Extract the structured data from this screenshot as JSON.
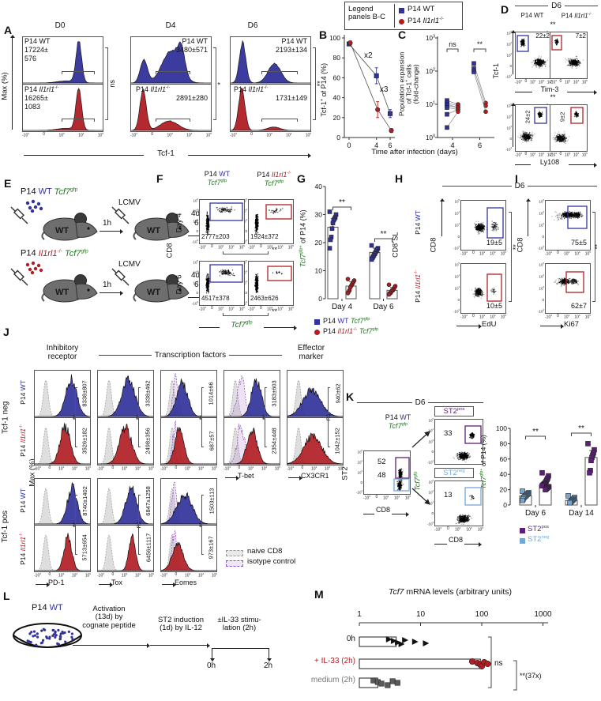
{
  "colors": {
    "wt_blue": "#32329b",
    "ko_red": "#b01e24",
    "gfp_green": "#1f7a1f",
    "st2pos_purple": "#5c2177",
    "st2neg_blue": "#6fa8dc",
    "naive_gray": "#dcdcdc",
    "isotype_purple": "#8b4bb8"
  },
  "flow_ticks": {
    "x": [
      "-10^3",
      "0",
      "10^3",
      "10^4",
      "10^5"
    ],
    "y": [
      "10^5",
      "10^4",
      "10^3",
      "0",
      "-10^3"
    ]
  },
  "panelA": {
    "label": "A",
    "ylabel": "Max (%)",
    "xlabel": "Tcf-1",
    "wt_name": "P14 WT",
    "ko_name_html": "P14 <i>Il1rl1</i><sup>-/-</sup>",
    "plots": [
      {
        "day": "D0",
        "wt_value": "17224±",
        "wt_value2": "576",
        "ko_value": "16265±",
        "ko_value2": "1083",
        "sig": "ns"
      },
      {
        "day": "D4",
        "wt_value": "3480±571",
        "ko_value": "2891±280",
        "sig": "*"
      },
      {
        "day": "D6",
        "wt_value": "2193±134",
        "ko_value": "1731±149",
        "sig": "**"
      }
    ]
  },
  "legendBC": {
    "title_html": "Legend<br>panels B-C",
    "wt": "P14 WT",
    "ko_html": "P14 <i>Il1rl1</i><sup>-/-</sup>"
  },
  "panelB": {
    "label": "B",
    "ylabel_html": "Tcf-1<sup>+</sup> of P14 (%)",
    "xlabel": "Time after infection (days)"
  },
  "panelC": {
    "label": "C",
    "ylabel_html": "Population expansion<br>of Tcf-1<sup>+</sup> cells<br>(fold-change)"
  },
  "panelD": {
    "label": "D",
    "day": "D6",
    "col_wt": "P14 WT",
    "col_ko_html": "P14 <i>Il1rl1</i><sup>-/-</sup>",
    "ylabel": "Tcf-1",
    "rows": [
      {
        "xlabel": "Tim-3",
        "sig": "**",
        "wt": "22±2",
        "ko": "7±2"
      },
      {
        "xlabel": "Ly108",
        "sig": "**",
        "wt": "24±2",
        "ko": "9±2"
      }
    ]
  },
  "panelE": {
    "label": "E",
    "row1_html": "P14 <span class=\"c-wt\">WT</span> <span class=\"c-gfp\"><i>Tcf7</i><sup>gfp</sup></span>",
    "row2_html": "P14 <span class=\"c-ko\"><i>Il1rl1</i><sup>-/-</sup></span> <span class=\"c-gfp\"><i>Tcf7</i><sup>gfp</sup></span>",
    "t_inj": "1h",
    "virus": "LCMV",
    "mouse": "WT",
    "t_read1": "4d /",
    "t_read2": "6d"
  },
  "panelF": {
    "label": "F",
    "col1_html": "P14 <span class=\"c-wt\">WT</span><br><span class=\"c-gfp\"><i>Tcf7</i><sup>gfp</sup></span>",
    "col2_html": "P14 <span class=\"c-ko\"><i>Il1rl1</i><sup>-/-</sup></span><br><span class=\"c-gfp\"><i>Tcf7</i><sup>gfp</sup></span>",
    "ylabel": "CD8",
    "xlabel_html": "<span class=\"c-gfp\"><i>Tcf7</i><sup>gfp</sup></span>",
    "rows": [
      {
        "row": "Day 4",
        "wt": "2777±203",
        "ko": "1924±372",
        "sig": "**"
      },
      {
        "row": "Day 6",
        "wt": "4517±378",
        "ko": "2463±626",
        "sig": "**"
      }
    ]
  },
  "panelG": {
    "label": "G",
    "ylabel_html": "<i class=\"c-gfp\">Tcf7</i><sup class=\"c-gfp\">gfp+</sup> of P14 (%)",
    "legend_wt_html": "P14 <span class=\"c-wt\">WT</span> <span class=\"c-gfp\"><i>Tcf7</i><sup>gfp</sup></span>",
    "legend_ko_html": "P14 <span class=\"c-ko\"><i>Il1rl1</i><sup>-/-</sup></span> <span class=\"c-gfp\"><i>Tcf7</i><sup>gfp</sup></span>"
  },
  "panelH": {
    "label": "H",
    "day": "D6",
    "group_html": "CD8<sup>+</sup>SL",
    "row_wt_html": "P14 <span class=\"c-wt\">WT</span>",
    "row_ko_html": "P14 <span class=\"c-ko\"><i>Il1rl1</i><sup>-/-</sup></span>",
    "ylabel": "CD8",
    "xlabel": "EdU",
    "wt_val": "19±5",
    "ko_val": "10±5",
    "sig": "**"
  },
  "panelI": {
    "label": "I",
    "ylabel": "CD8",
    "xlabel": "Ki67",
    "wt_val": "75±5",
    "ko_val": "62±7",
    "sig": "**"
  },
  "panelJ": {
    "label": "J",
    "header1_html": "Inhibitory<br>receptor",
    "header2": "Transcription factors",
    "header3_html": "Effector<br>marker",
    "group1": "Tcf-1 neg",
    "group2": "Tcf-1 pos",
    "row_wt_html": "P14 <span class=\"c-wt\">WT</span>",
    "row_ko_html": "P14 <span class=\"c-ko\"><i>Il1rl1</i><sup>-/-</sup></span>",
    "ylabel": "Max (%)",
    "legend_naive": "naive CD8",
    "legend_iso": "isotype control",
    "top_cols": [
      {
        "x": "",
        "wt": "8338±807",
        "ko": "3526±182",
        "sig": "**"
      },
      {
        "x": "",
        "wt": "3338±462",
        "ko": "2498±356",
        "sig": "**"
      },
      {
        "x": "",
        "wt": "1014±66",
        "ko": "687±57",
        "sig": "**"
      },
      {
        "x": "T-bet",
        "wt": "3183±603",
        "ko": "2354±448",
        "sig": "**"
      },
      {
        "x": "CX3CR1",
        "wt": "940±62",
        "ko": "1042±152",
        "sig": "ns"
      }
    ],
    "bottom_cols": [
      {
        "x": "PD-1",
        "wt": "8740±1402",
        "ko": "5713±654",
        "sig": "**"
      },
      {
        "x": "Tox",
        "wt": "6847±1258",
        "ko": "6456±1117",
        "sig": "ns"
      },
      {
        "x": "Eomes",
        "wt": "1503±113",
        "ko": "973±167",
        "sig": "**"
      }
    ]
  },
  "panelK": {
    "label": "K",
    "day": "D6",
    "left_title_html": "P14 <span class=\"c-wt\">WT</span><br><span class=\"c-gfp\"><i>Tcf7</i><sup>gfp</sup></span>",
    "left_ylabel": "ST2",
    "left_xlabel": "CD8",
    "gate_pos": "52",
    "gate_neg": "48",
    "pos_label_html": "ST2<sup>pos</sup>",
    "neg_label_html": "ST2<sup>neg</sup>",
    "pos_value": "33",
    "neg_value": "13",
    "mid_ylabel_html": "<i>Tcf7</i><sup>gfp</sup>",
    "mid_xlabel": "CD8",
    "bar_ylabel_html": "<i class=\"c-gfp\">Tcf7</i><sup class=\"c-gfp\">gfp+</sup> of P14 (%)",
    "legend_pos_html": "ST2<sup>pos</sup>",
    "legend_neg_html": "ST2<sup>neg</sup>"
  },
  "panelL": {
    "label": "L",
    "cells_html": "P14 <span class=\"c-wt\">WT</span>",
    "step1_html": "Activation<br>(13d) by<br>cognate peptide",
    "step2_html": "ST2 induction<br>(1d) by IL-12",
    "step3_html": "±IL-33 stimu-<br>lation (2h)",
    "t0": "0h",
    "t1": "2h"
  },
  "panelM": {
    "label": "M",
    "title_html": "<i>Tcf7</i> mRNA levels (arbitrary units)"
  },
  "chart_data": [
    {
      "id": "B",
      "type": "line",
      "title": "",
      "xlabel": "Time after infection (days)",
      "ylabel": "Tcf-1+ of P14 (%)",
      "x": [
        0,
        4,
        6
      ],
      "ylim": [
        0,
        100
      ],
      "yticks": [
        0,
        20,
        40,
        60,
        80,
        100
      ],
      "series": [
        {
          "name": "P14 WT",
          "marker": "square",
          "color": "#32329b",
          "values": [
            94,
            62,
            24
          ],
          "errors": [
            2,
            8,
            4
          ]
        },
        {
          "name": "P14 Il1rl1-/-",
          "marker": "circle",
          "color": "#b01e24",
          "values": [
            95,
            28,
            7
          ],
          "errors": [
            2,
            8,
            2
          ]
        }
      ],
      "annotations": [
        {
          "text": "x2",
          "x": 2.8,
          "y": 80
        },
        {
          "text": "x3",
          "x": 5.1,
          "y": 46
        }
      ]
    },
    {
      "id": "C",
      "type": "paired_scatter",
      "ylabel": "Population expansion of Tcf-1+ cells (fold-change)",
      "yscale": "log",
      "ylim": [
        1,
        1000
      ],
      "categories": [
        "4",
        "6"
      ],
      "pairs": {
        "4": [
          [
            13,
            10
          ],
          [
            11,
            9
          ],
          [
            10,
            8
          ],
          [
            9,
            8
          ],
          [
            8,
            7
          ],
          [
            5,
            7
          ],
          [
            2,
            6
          ]
        ],
        "6": [
          [
            170,
            11
          ],
          [
            120,
            9
          ],
          [
            95,
            6
          ]
        ]
      },
      "sig": [
        {
          "cat": "4",
          "label": "ns"
        },
        {
          "cat": "6",
          "label": "**"
        }
      ]
    },
    {
      "id": "G",
      "type": "bar_scatter",
      "ylabel": "Tcf7gfp+ of P14 (%)",
      "ylim": [
        0,
        40
      ],
      "yticks": [
        0,
        10,
        20,
        30,
        40
      ],
      "categories": [
        "Day 4",
        "Day 6"
      ],
      "series": [
        {
          "name": "P14 WT Tcf7gfp",
          "color": "#32329b",
          "marker": "square",
          "means": [
            25.5,
            16.5
          ],
          "errors": [
            3,
            1.5
          ],
          "points": [
            [
              31,
              30,
              29,
              28.5,
              28,
              27,
              25,
              22,
              21,
              18
            ],
            [
              19,
              18,
              17.5,
              17,
              16.5,
              16,
              15.5,
              15,
              14.5,
              14
            ]
          ]
        },
        {
          "name": "P14 Il1rl1-/- Tcf7gfp",
          "color": "#b01e24",
          "marker": "circle",
          "means": [
            4.5,
            3
          ],
          "errors": [
            1.5,
            1
          ],
          "points": [
            [
              7,
              6.5,
              6,
              5.5,
              5,
              4.5,
              4,
              3,
              2.5,
              2
            ],
            [
              5,
              4.5,
              4,
              3.5,
              3,
              3,
              2.5,
              2,
              2,
              1.5
            ]
          ]
        }
      ],
      "sig": [
        "**",
        "**"
      ]
    },
    {
      "id": "K",
      "type": "bar_scatter",
      "ylabel": "Tcf7gfp+ of P14 (%)",
      "ylim": [
        0,
        100
      ],
      "yticks": [
        0,
        20,
        40,
        60,
        80,
        100
      ],
      "categories": [
        "Day 6",
        "Day 14"
      ],
      "series": [
        {
          "name": "ST2neg",
          "color": "#6fa8dc",
          "marker": "square",
          "means": [
            12,
            6
          ],
          "errors": [
            3,
            2
          ],
          "points": [
            [
              18,
              16,
              15,
              14,
              13,
              12,
              11,
              10,
              8,
              6
            ],
            [
              12,
              10,
              8,
              7,
              6,
              5,
              4,
              3
            ]
          ]
        },
        {
          "name": "ST2pos",
          "color": "#5c2177",
          "marker": "square",
          "means": [
            26,
            62
          ],
          "errors": [
            5,
            9
          ],
          "points": [
            [
              42,
              38,
              35,
              33,
              31,
              29,
              28,
              27,
              26,
              25,
              24,
              23,
              22,
              21,
              20
            ],
            [
              80,
              72,
              68,
              65,
              62,
              58,
              45,
              42
            ]
          ]
        }
      ],
      "sig": [
        "**",
        "**"
      ]
    },
    {
      "id": "M",
      "type": "hbar_scatter",
      "title": "Tcf7 mRNA levels (arbitrary units)",
      "xscale": "log",
      "xlim": [
        1,
        1000
      ],
      "xticks": [
        1,
        10,
        100,
        1000
      ],
      "rows": [
        {
          "label": "0h",
          "color": "#111111",
          "marker": "triangle",
          "bar": 4,
          "points": [
            3,
            3.6,
            4.2,
            4.8,
            5.5,
            8,
            12
          ]
        },
        {
          "label": "+ IL-33 (2h)",
          "color": "#b01e24",
          "marker": "circle",
          "bar": 95,
          "points": [
            70,
            85,
            95,
            100,
            110,
            125
          ]
        },
        {
          "label": "medium (2h)",
          "color": "#5a5a5a",
          "marker": "square",
          "bar": 2,
          "points": [
            1.7,
            2,
            2.3,
            2.9,
            3.5,
            4.2
          ]
        }
      ],
      "sig": [
        {
          "label": "ns",
          "rows": [
            0,
            2
          ]
        },
        {
          "label": "**(37x)",
          "rows": [
            1,
            2
          ]
        }
      ]
    }
  ]
}
